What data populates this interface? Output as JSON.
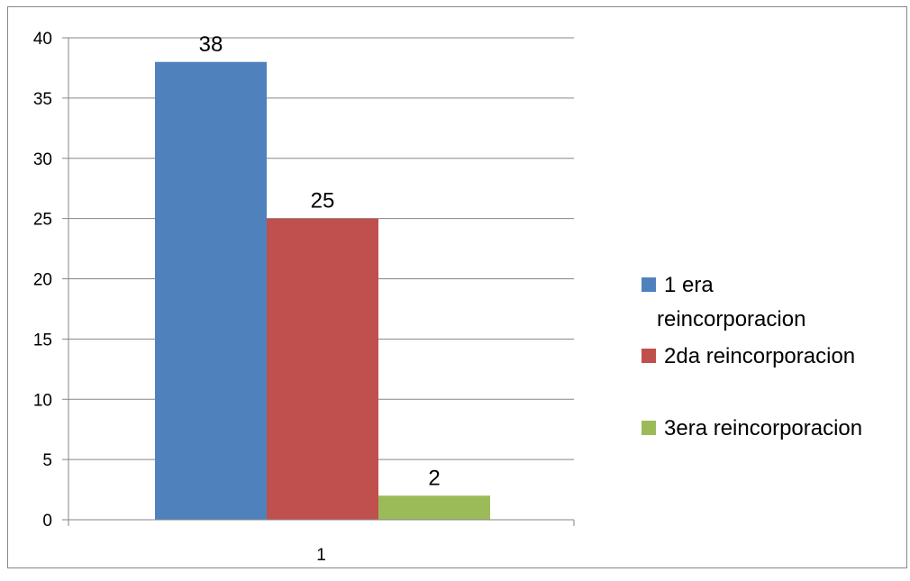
{
  "chart_data": {
    "type": "bar",
    "categories": [
      "1"
    ],
    "series": [
      {
        "name": "1 era reincorporacion",
        "name_lines": [
          "1 era",
          "reincorporacion"
        ],
        "values": [
          38
        ],
        "color": "#4F81BD"
      },
      {
        "name": "2da reincorporacion",
        "name_lines": [
          "2da reincorporacion"
        ],
        "values": [
          25
        ],
        "color": "#C0504D"
      },
      {
        "name": "3era reincorporacion",
        "name_lines": [
          "3era reincorporacion"
        ],
        "values": [
          2
        ],
        "color": "#9BBB59"
      }
    ],
    "y_ticks": [
      "0",
      "5",
      "10",
      "15",
      "20",
      "25",
      "30",
      "35",
      "40"
    ],
    "ylim": [
      0,
      40
    ],
    "y_step": 5,
    "data_labels": [
      "38",
      "25",
      "2"
    ],
    "title": "",
    "xlabel": "",
    "ylabel": "",
    "grid": true,
    "legend_position": "right"
  }
}
